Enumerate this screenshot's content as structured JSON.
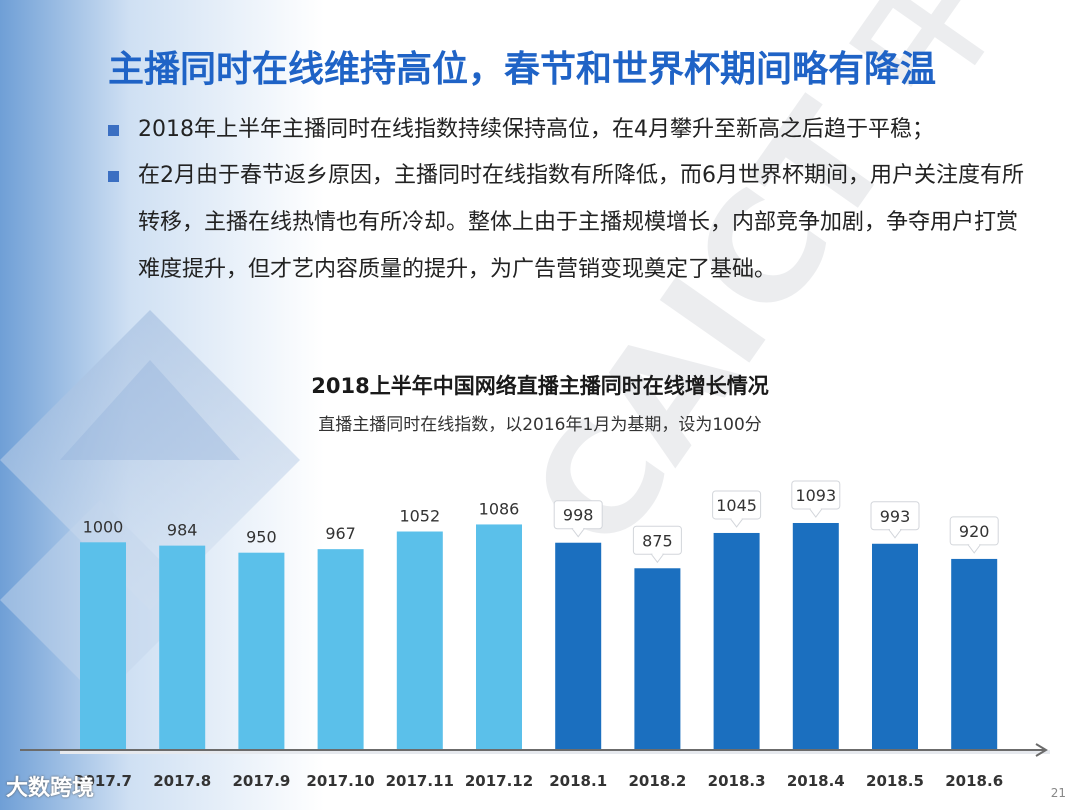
{
  "slide": {
    "title": "主播同时在线维持高位，春节和世界杯期间略有降温",
    "bullets": [
      "2018年上半年主播同时在线指数持续保持高位，在4月攀升至新高之后趋于平稳；",
      "在2月由于春节返乡原因，主播同时在线指数有所降低，而6月世界杯期间，用户关注度有所转移，主播在线热情也有所冷却。整体上由于主播规模增长，内部竞争加剧，争夺用户打赏难度提升，但才艺内容质量的提升，为广告营销变现奠定了基础。"
    ],
    "watermark": "CAICT 中国信通院",
    "footer_logo": "大数跨境",
    "page_number": "21"
  },
  "colors": {
    "title": "#1f63c6",
    "bar_2017": "#5bc0ea",
    "bar_2018": "#1b6fbf",
    "axis": "#6b6b6b"
  },
  "chart_data": {
    "type": "bar",
    "title": "2018上半年中国网络直播主播同时在线增长情况",
    "subtitle": "直播主播同时在线指数，以2016年1月为基期，设为100分",
    "categories": [
      "2017.7",
      "2017.8",
      "2017.9",
      "2017.10",
      "2017.11",
      "2017.12",
      "2018.1",
      "2018.2",
      "2018.3",
      "2018.4",
      "2018.5",
      "2018.6"
    ],
    "values": [
      1000,
      984,
      950,
      967,
      1052,
      1086,
      998,
      875,
      1045,
      1093,
      993,
      920
    ],
    "callout_labels_from_index": 6,
    "ylim": [
      0,
      1300
    ],
    "grid": false,
    "xlabel": "",
    "ylabel": ""
  }
}
